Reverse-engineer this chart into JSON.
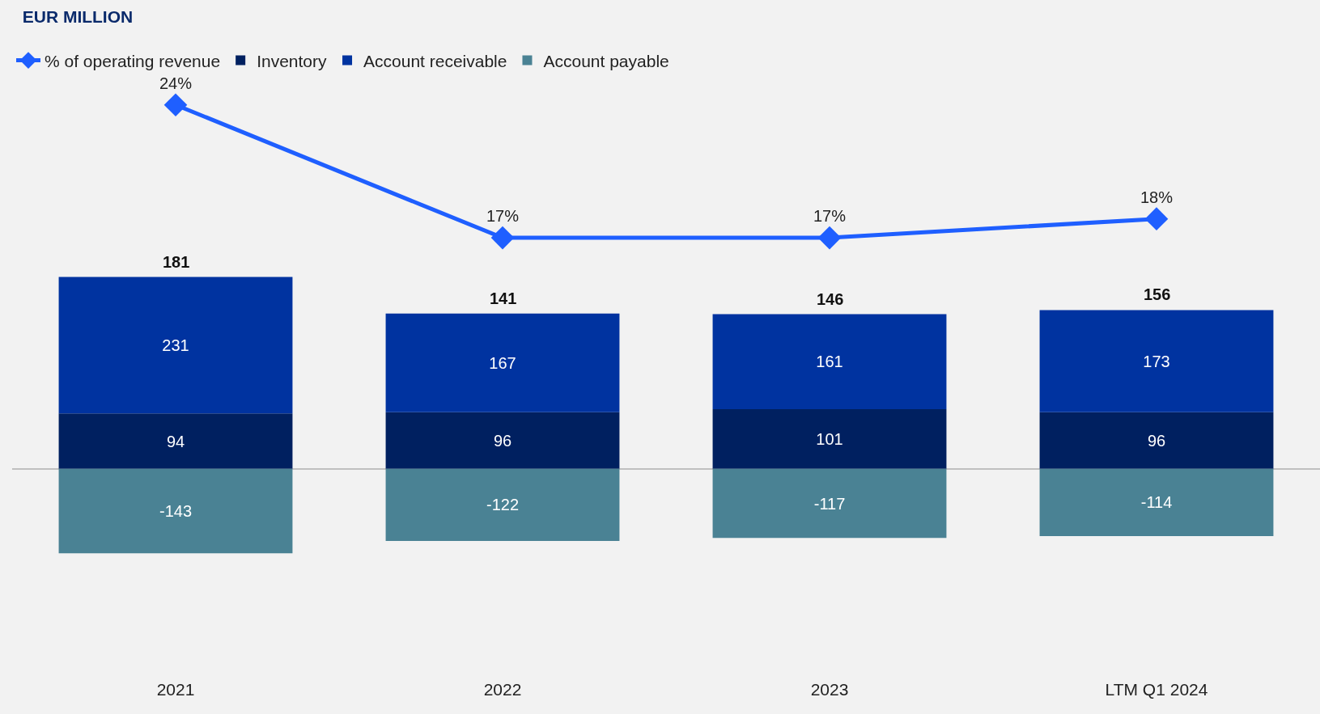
{
  "chart_data": [
    {
      "type": "line",
      "title": "EUR MILLION",
      "categories": [
        "2021",
        "2022",
        "2023",
        "LTM Q1 2024"
      ],
      "legend": "top left",
      "tick_labels": false,
      "series": [
        {
          "name": "% of operating revenue",
          "color": "#1f5fff",
          "marker": "diamond",
          "values": [
            24,
            17,
            17,
            18
          ],
          "value_labels": [
            "24%",
            "17%",
            "17%",
            "18%"
          ]
        }
      ]
    },
    {
      "type": "bar",
      "categories": [
        "2021",
        "2022",
        "2023",
        "LTM Q1 2024"
      ],
      "stacked": true,
      "data_labels": true,
      "legend": "top left",
      "grid": false,
      "tick_labels": "x",
      "series": [
        {
          "name": "Inventory",
          "color": "#002060",
          "values": [
            94,
            96,
            101,
            96
          ]
        },
        {
          "name": "Account receivable",
          "color": "#0033a0",
          "values": [
            231,
            167,
            161,
            173
          ]
        },
        {
          "name": "Account payable",
          "color": "#4a8294",
          "values": [
            -143,
            -122,
            -117,
            -114
          ]
        }
      ],
      "annotations": [
        {
          "text": "181",
          "x": "2021",
          "y": 325
        },
        {
          "text": "141",
          "x": "2022",
          "y": 263
        },
        {
          "text": "146",
          "x": "2023",
          "y": 262
        },
        {
          "text": "156",
          "x": "LTM Q1 2024",
          "y": 269
        }
      ]
    }
  ]
}
